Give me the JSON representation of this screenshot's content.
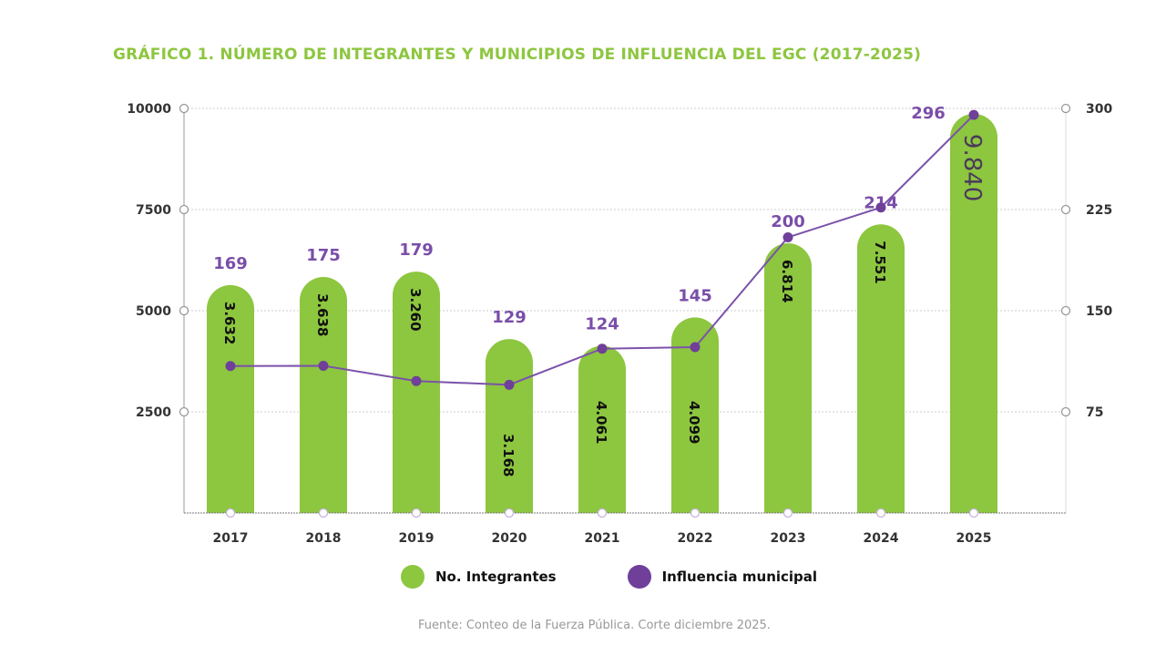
{
  "title": "GRÁFICO 1. NÚMERO DE INTEGRANTES Y MUNICIPIOS DE INFLUENCIA DEL EGC (2017-2025)",
  "source": "Fuente: Conteo de la Fuerza Pública. Corte diciembre 2025.",
  "colors": {
    "integrantes": "#8dc63f",
    "municipios": "#6f3f9a",
    "title": "#8dc63f"
  },
  "chart_data": {
    "type": "bar+line",
    "title": "GRÁFICO 1. NÚMERO DE INTEGRANTES Y MUNICIPIOS DE INFLUENCIA DEL EGC (2017-2025)",
    "categories": [
      "2017",
      "2018",
      "2019",
      "2020",
      "2021",
      "2022",
      "2023",
      "2024",
      "2025"
    ],
    "series": [
      {
        "name": "No. Integrantes",
        "values": [
          3632,
          3638,
          3260,
          3168,
          4061,
          4099,
          6814,
          7551,
          9840
        ],
        "labels": [
          "3.632",
          "3.638",
          "3.260",
          "3.168",
          "4.061",
          "4.099",
          "6.814",
          "7.551",
          "9.840"
        ],
        "axis": "left"
      },
      {
        "name": "Influencia municipal",
        "values": [
          169,
          175,
          179,
          129,
          124,
          145,
          200,
          214,
          296
        ],
        "labels": [
          "169",
          "175",
          "179",
          "129",
          "124",
          "145",
          "200",
          "214",
          "296"
        ],
        "axis": "right"
      }
    ],
    "left_axis": {
      "range": [
        0,
        10000
      ],
      "ticks": [
        "2500",
        "5000",
        "7500",
        "10000"
      ]
    },
    "right_axis": {
      "range": [
        0,
        300
      ],
      "ticks": [
        "75",
        "150",
        "225",
        "300"
      ]
    },
    "grid": "horizontal dotted",
    "legend": {
      "placement": "bottom",
      "items": [
        "No. Integrantes",
        "Influencia municipal"
      ]
    }
  }
}
